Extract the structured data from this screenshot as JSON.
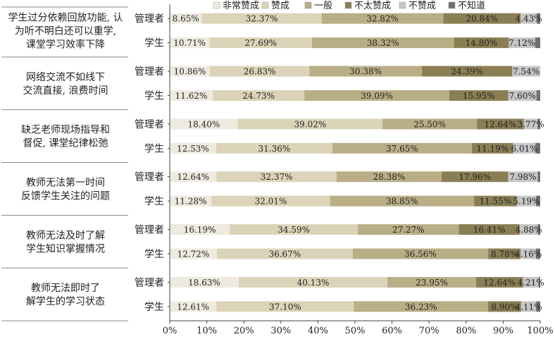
{
  "chart_data": {
    "type": "bar",
    "orientation": "horizontal",
    "stacked": true,
    "xlim": [
      0,
      100
    ],
    "x_ticks": [
      "0%",
      "10%",
      "20%",
      "30%",
      "40%",
      "50%",
      "60%",
      "70%",
      "80%",
      "90%",
      "100%"
    ],
    "legend": {
      "placement": "top",
      "items": [
        {
          "name": "非常赞成",
          "color": "#eeeadf"
        },
        {
          "name": "赞成",
          "color": "#dcd4b8"
        },
        {
          "name": "一般",
          "color": "#b9ae86"
        },
        {
          "name": "不太赞成",
          "color": "#8a7f54"
        },
        {
          "name": "不赞成",
          "color": "#c6c6c6"
        },
        {
          "name": "不知道",
          "color": "#6e6e6e"
        }
      ]
    },
    "groups": [
      {
        "label_lines": [
          "学生过分依赖回放功能, 认",
          "为听不明白还可以重学,",
          "课堂学习效率下降"
        ],
        "rows": [
          {
            "respondent": "管理者",
            "values": [
              8.65,
              32.37,
              32.82,
              20.84,
              4.43,
              0.89
            ],
            "labels": [
              "8.65%",
              "32.37%",
              "32.82%",
              "20.84%",
              "4.43%",
              ""
            ]
          },
          {
            "respondent": "学生",
            "values": [
              10.71,
              27.69,
              38.32,
              14.8,
              7.12,
              1.36
            ],
            "labels": [
              "10.71%",
              "27.69%",
              "38.32%",
              "14.80%",
              "7.12%",
              ""
            ]
          }
        ]
      },
      {
        "label_lines": [
          "网络交流不如线下",
          "交流直接, 浪费时间"
        ],
        "rows": [
          {
            "respondent": "管理者",
            "values": [
              10.86,
              26.83,
              30.38,
              24.39,
              7.54,
              0.0
            ],
            "labels": [
              "10.86%",
              "26.83%",
              "30.38%",
              "24.39%",
              "7.54%",
              ""
            ]
          },
          {
            "respondent": "学生",
            "values": [
              11.62,
              24.73,
              39.09,
              15.95,
              7.6,
              1.01
            ],
            "labels": [
              "11.62%",
              "24.73%",
              "39.09%",
              "15.95%",
              "7.60%",
              ""
            ]
          }
        ]
      },
      {
        "label_lines": [
          "缺乏老师现场指导和",
          "督促, 课堂纪律松弛"
        ],
        "rows": [
          {
            "respondent": "管理者",
            "values": [
              18.4,
              39.02,
              25.5,
              12.64,
              3.77,
              0.67
            ],
            "labels": [
              "18.40%",
              "39.02%",
              "25.50%",
              "12.64%",
              "3.77%",
              ""
            ]
          },
          {
            "respondent": "学生",
            "values": [
              12.53,
              31.36,
              37.65,
              11.19,
              6.01,
              1.26
            ],
            "labels": [
              "12.53%",
              "31.36%",
              "37.65%",
              "11.19%",
              "6.01%",
              ""
            ]
          }
        ]
      },
      {
        "label_lines": [
          "教师无法第一时间",
          "反馈学生关注的问题"
        ],
        "rows": [
          {
            "respondent": "管理者",
            "values": [
              12.64,
              32.37,
              28.38,
              17.96,
              7.98,
              0.67
            ],
            "labels": [
              "12.64%",
              "32.37%",
              "28.38%",
              "17.96%",
              "7.98%",
              ""
            ]
          },
          {
            "respondent": "学生",
            "values": [
              11.28,
              32.01,
              38.85,
              11.55,
              5.19,
              1.12
            ],
            "labels": [
              "11.28%",
              "32.01%",
              "38.85%",
              "11.55%",
              "5.19%",
              ""
            ]
          }
        ]
      },
      {
        "label_lines": [
          "教师无法及时了解",
          "学生知识掌握情况"
        ],
        "rows": [
          {
            "respondent": "管理者",
            "values": [
              16.19,
              34.59,
              27.27,
              16.41,
              4.88,
              0.66
            ],
            "labels": [
              "16.19%",
              "34.59%",
              "27.27%",
              "16.41%",
              "4.88%",
              ""
            ]
          },
          {
            "respondent": "学生",
            "values": [
              12.72,
              36.67,
              36.56,
              8.78,
              4.16,
              1.11
            ],
            "labels": [
              "12.72%",
              "36.67%",
              "36.56%",
              "8.78%",
              "4.16%",
              ""
            ]
          }
        ]
      },
      {
        "label_lines": [
          "教师无法即时了",
          "解学生的学习状态"
        ],
        "rows": [
          {
            "respondent": "管理者",
            "values": [
              18.63,
              40.13,
              23.95,
              12.64,
              4.21,
              0.44
            ],
            "labels": [
              "18.63%",
              "40.13%",
              "23.95%",
              "12.64%",
              "4.21%",
              ""
            ]
          },
          {
            "respondent": "学生",
            "values": [
              12.61,
              37.1,
              36.23,
              8.9,
              4.11,
              1.05
            ],
            "labels": [
              "12.61%",
              "37.10%",
              "36.23%",
              "8.90%",
              "4.11%",
              ""
            ]
          }
        ]
      }
    ]
  }
}
